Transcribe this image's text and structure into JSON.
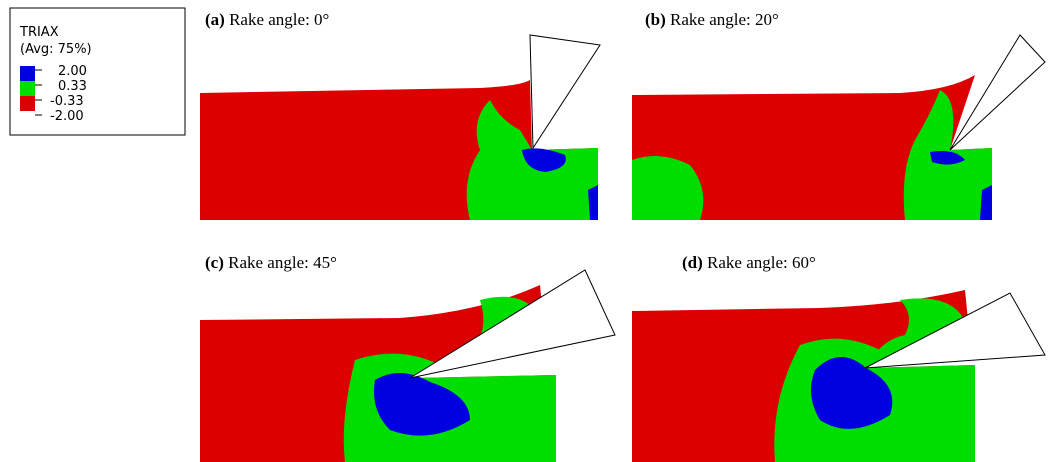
{
  "legend": {
    "title": "TRIAX",
    "subtitle": "(Avg: 75%)",
    "levels": [
      "2.00",
      "0.33",
      "-0.33",
      "-2.00"
    ]
  },
  "panels": [
    {
      "id": "(a)",
      "caption": "Rake angle:  0°"
    },
    {
      "id": "(b)",
      "caption": "Rake angle:  20°"
    },
    {
      "id": "(c)",
      "caption": "Rake angle:  45°"
    },
    {
      "id": "(d)",
      "caption": "Rake angle:  60°"
    }
  ]
}
